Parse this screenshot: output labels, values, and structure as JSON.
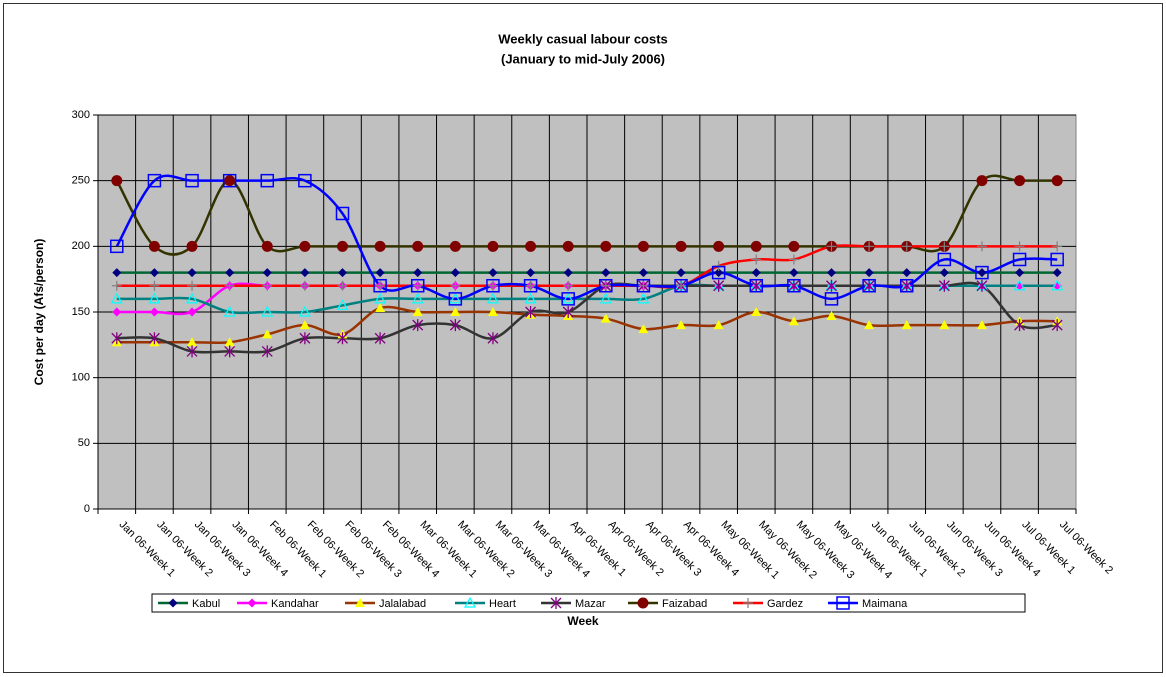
{
  "chart_data": {
    "type": "line",
    "title": "Weekly casual labour costs",
    "subtitle": "(January to mid-July 2006)",
    "x_label": "Week",
    "y_label": "Cost per day (Afs/person)",
    "categories": [
      "Jan 06-Week 1",
      "Jan 06-Week 2",
      "Jan 06-Week 3",
      "Jan 06-Week 4",
      "Feb 06-Week 1",
      "Feb 06-Week 2",
      "Feb 06-Week 3",
      "Feb 06-Week 4",
      "Mar 06-Week 1",
      "Mar 06-Week 2",
      "Mar 06-Week 3",
      "Mar 06-Week 4",
      "Apr 06-Week 1",
      "Apr 06-Week 2",
      "Apr 06-Week 3",
      "Apr 06-Week 4",
      "May 06-Week 1",
      "May 06-Week 2",
      "May 06-Week 3",
      "May 06-Week 4",
      "Jun 06-Week 1",
      "Jun 06-Week 2",
      "Jun 06-Week 3",
      "Jun 06-Week 4",
      "Jul 06-Week 1",
      "Jul 06-Week 2"
    ],
    "series": [
      {
        "name": "Kabul",
        "color": "#006633",
        "marker": "diamond",
        "marker_color": "#000080",
        "values": [
          180,
          180,
          180,
          180,
          180,
          180,
          180,
          180,
          180,
          180,
          180,
          180,
          180,
          180,
          180,
          180,
          180,
          180,
          180,
          180,
          180,
          180,
          180,
          180,
          180,
          180
        ]
      },
      {
        "name": "Kandahar",
        "color": "#ff00ff",
        "marker": "diamond",
        "marker_color": "#ff00ff",
        "values": [
          150,
          150,
          150,
          170,
          170,
          170,
          170,
          170,
          170,
          170,
          170,
          170,
          170,
          170,
          170,
          170,
          170,
          170,
          170,
          170,
          170,
          170,
          170,
          170,
          170,
          170
        ]
      },
      {
        "name": "Jalalabad",
        "color": "#993300",
        "marker": "triangle",
        "marker_color": "#ffff00",
        "values": [
          127,
          127,
          127,
          127,
          133,
          140,
          133,
          153,
          150,
          150,
          150,
          148,
          147,
          145,
          137,
          140,
          140,
          150,
          143,
          147,
          140,
          140,
          140,
          140,
          143,
          143
        ]
      },
      {
        "name": "Heart",
        "color": "#008080",
        "marker": "triangle-open",
        "marker_color": "#00ffff",
        "values": [
          160,
          160,
          160,
          150,
          150,
          150,
          155,
          160,
          160,
          160,
          160,
          160,
          160,
          160,
          160,
          170,
          170,
          170,
          170,
          170,
          170,
          170,
          170,
          170,
          170,
          170
        ]
      },
      {
        "name": "Mazar",
        "color": "#333333",
        "marker": "asterisk",
        "marker_color": "#800080",
        "values": [
          130,
          130,
          120,
          120,
          120,
          130,
          130,
          130,
          140,
          140,
          130,
          150,
          150,
          170,
          170,
          170,
          170,
          170,
          170,
          170,
          170,
          170,
          170,
          170,
          140,
          140
        ]
      },
      {
        "name": "Faizabad",
        "color": "#333300",
        "marker": "circle",
        "marker_color": "#800000",
        "values": [
          250,
          200,
          200,
          250,
          200,
          200,
          200,
          200,
          200,
          200,
          200,
          200,
          200,
          200,
          200,
          200,
          200,
          200,
          200,
          200,
          200,
          200,
          200,
          250,
          250,
          250
        ]
      },
      {
        "name": "Gardez",
        "color": "#ff0000",
        "marker": "plus",
        "marker_color": "#808080",
        "values": [
          170,
          170,
          170,
          170,
          170,
          170,
          170,
          170,
          170,
          170,
          170,
          170,
          170,
          170,
          170,
          170,
          185,
          190,
          190,
          200,
          200,
          200,
          200,
          200,
          200,
          200
        ]
      },
      {
        "name": "Maimana",
        "color": "#0000ff",
        "marker": "square-open",
        "marker_color": "#0000ff",
        "values": [
          200,
          250,
          250,
          250,
          250,
          250,
          225,
          170,
          170,
          160,
          170,
          170,
          160,
          170,
          170,
          170,
          180,
          170,
          170,
          160,
          170,
          170,
          190,
          180,
          190,
          190
        ]
      }
    ],
    "ylim": [
      0,
      300
    ],
    "yticks": [
      0,
      50,
      100,
      150,
      200,
      250,
      300
    ],
    "grid": true,
    "plot_background": "#c0c0c0",
    "legend": "bottom"
  }
}
